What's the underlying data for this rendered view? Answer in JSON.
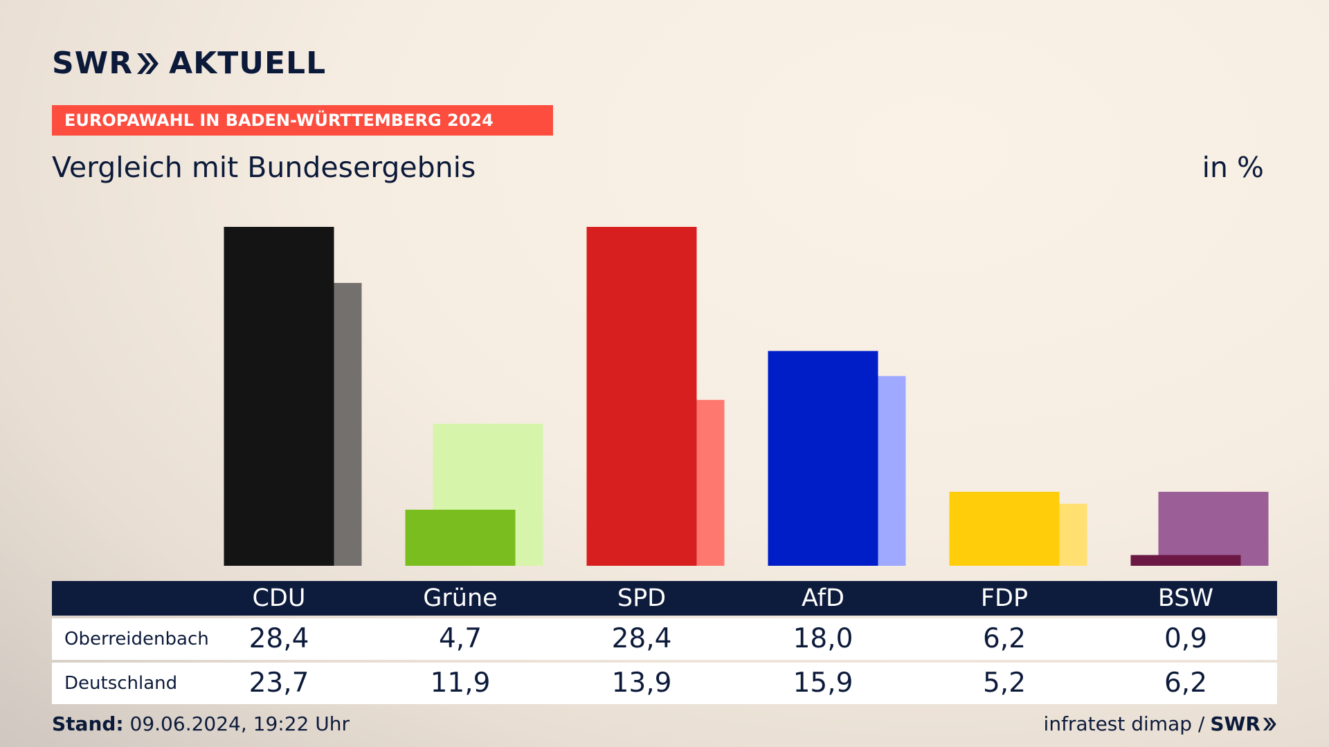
{
  "header": {
    "logo_brand": "SWR",
    "logo_product": "AKTUELL",
    "banner": "EUROPAWAHL IN BADEN-WÜRTTEMBERG 2024",
    "subtitle": "Vergleich mit Bundesergebnis",
    "unit": "in %"
  },
  "chart_data": {
    "type": "bar",
    "categories": [
      "CDU",
      "Grüne",
      "SPD",
      "AfD",
      "FDP",
      "BSW"
    ],
    "series": [
      {
        "name": "Oberreidenbach",
        "values": [
          28.4,
          4.7,
          28.4,
          18.0,
          6.2,
          0.9
        ]
      },
      {
        "name": "Deutschland",
        "values": [
          23.7,
          11.9,
          13.9,
          15.9,
          5.2,
          6.2
        ]
      }
    ],
    "display_values": {
      "Oberreidenbach": [
        "28,4",
        "4,7",
        "28,4",
        "18,0",
        "6,2",
        "0,9"
      ],
      "Deutschland": [
        "23,7",
        "11,9",
        "13,9",
        "15,9",
        "5,2",
        "6,2"
      ]
    },
    "colors_primary": [
      "#141414",
      "#7abd1e",
      "#d81f1f",
      "#001ec8",
      "#ffcd0a",
      "#6b1845"
    ],
    "colors_secondary": [
      "#74706e",
      "#d7f5aa",
      "#ff7870",
      "#9ea9ff",
      "#ffe070",
      "#9b5e97"
    ],
    "ylim": [
      0,
      28.4
    ]
  },
  "table": {
    "row_labels": [
      "Oberreidenbach",
      "Deutschland"
    ]
  },
  "footer": {
    "stand_label": "Stand:",
    "stand_value": "09.06.2024, 19:22 Uhr",
    "source": "infratest dimap /",
    "source_logo": "SWR"
  }
}
